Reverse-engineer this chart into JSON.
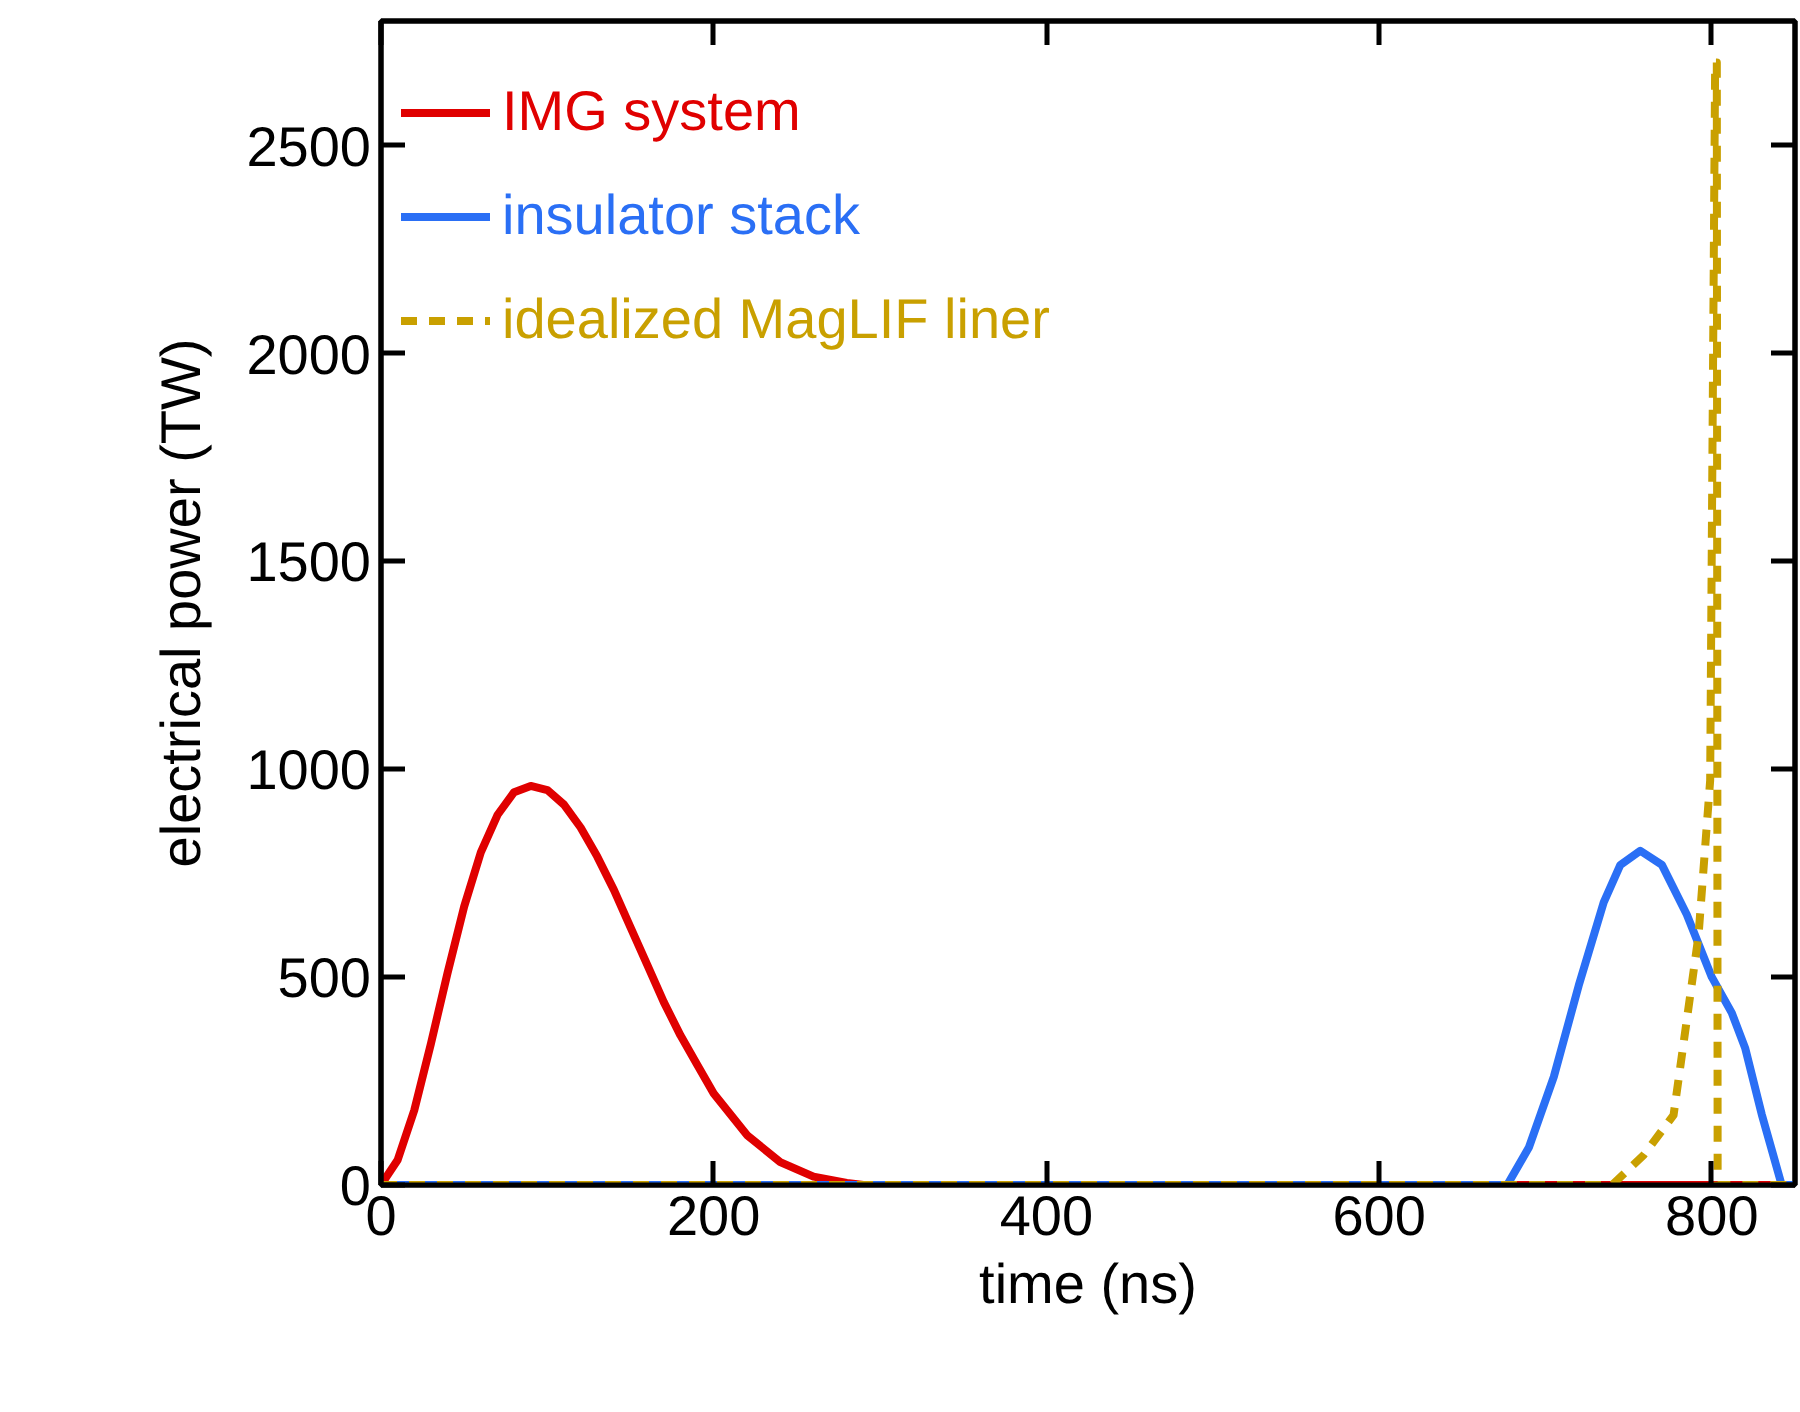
{
  "chart_data": {
    "type": "line",
    "xlabel": "time (ns)",
    "ylabel": "electrical power (TW)",
    "xlim": [
      0,
      850
    ],
    "ylim": [
      0,
      2800
    ],
    "xticks": [
      0,
      200,
      400,
      600,
      800
    ],
    "yticks": [
      0,
      500,
      1000,
      1500,
      2000,
      2500
    ],
    "grid": false,
    "legend": "top left",
    "series": [
      {
        "name": "IMG system",
        "color": "#e00000",
        "line_style": "solid",
        "x": [
          0,
          10,
          20,
          30,
          40,
          50,
          60,
          70,
          80,
          90,
          100,
          110,
          120,
          130,
          140,
          150,
          160,
          170,
          180,
          190,
          200,
          220,
          240,
          260,
          280,
          290,
          850
        ],
        "values": [
          0,
          60,
          180,
          340,
          510,
          670,
          800,
          890,
          945,
          960,
          950,
          915,
          860,
          790,
          710,
          620,
          530,
          440,
          360,
          290,
          220,
          120,
          55,
          20,
          5,
          0,
          0
        ]
      },
      {
        "name": "insulator stack",
        "color": "#2a6ff5",
        "line_style": "solid",
        "x": [
          0,
          677,
          690,
          705,
          720,
          735,
          745,
          757,
          770,
          785,
          800,
          812,
          820,
          830,
          842,
          850
        ],
        "values": [
          0,
          0,
          90,
          260,
          480,
          680,
          770,
          804,
          770,
          650,
          500,
          414,
          330,
          170,
          0,
          0
        ]
      },
      {
        "name": "idealized MagLIF liner",
        "color": "#c9a000",
        "line_style": "dashed",
        "x": [
          0,
          740,
          759,
          777,
          792,
          799,
          802,
          803,
          803.5,
          850
        ],
        "values": [
          0,
          0,
          72,
          168,
          600,
          973,
          2700,
          2700,
          0,
          0
        ]
      }
    ]
  }
}
